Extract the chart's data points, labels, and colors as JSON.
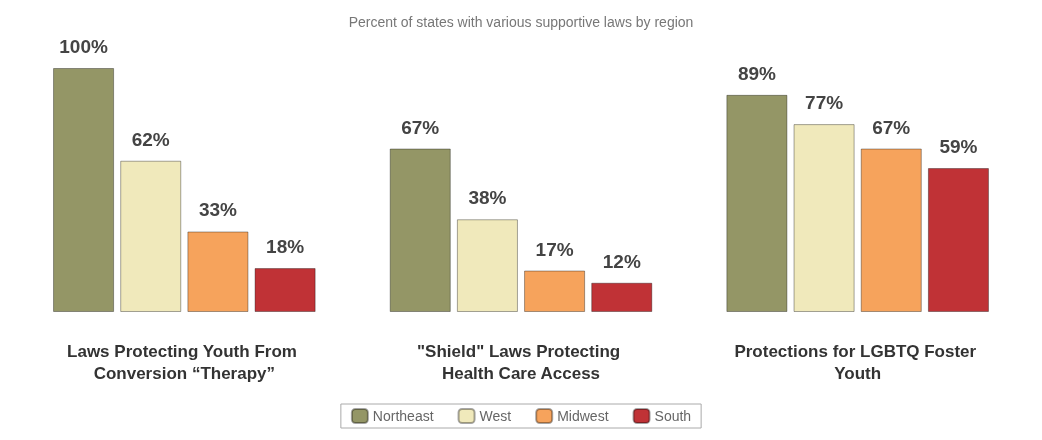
{
  "chart_data": {
    "type": "bar",
    "title": "Percent of states with various supportive laws by region",
    "categories": [
      "Laws Protecting Youth From Conversion “Therapy”",
      "\"Shield\" Laws Protecting Health Care Access",
      "Protections for LGBTQ Foster Youth"
    ],
    "series": [
      {
        "name": "Northeast",
        "color": "#949666",
        "values": [
          100,
          67,
          89
        ],
        "value_labels": [
          "100%",
          "67%",
          "89%"
        ]
      },
      {
        "name": "West",
        "color": "#f0e9bb",
        "values": [
          62,
          38,
          77
        ],
        "value_labels": [
          "62%",
          "38%",
          "77%"
        ]
      },
      {
        "name": "Midwest",
        "color": "#f6a35c",
        "values": [
          33,
          17,
          67
        ],
        "value_labels": [
          "33%",
          "17%",
          "67%"
        ]
      },
      {
        "name": "South",
        "color": "#c03236",
        "values": [
          18,
          12,
          59
        ],
        "value_labels": [
          "18%",
          "12%",
          "59%"
        ]
      }
    ],
    "legend": "bottom",
    "grid": false
  }
}
